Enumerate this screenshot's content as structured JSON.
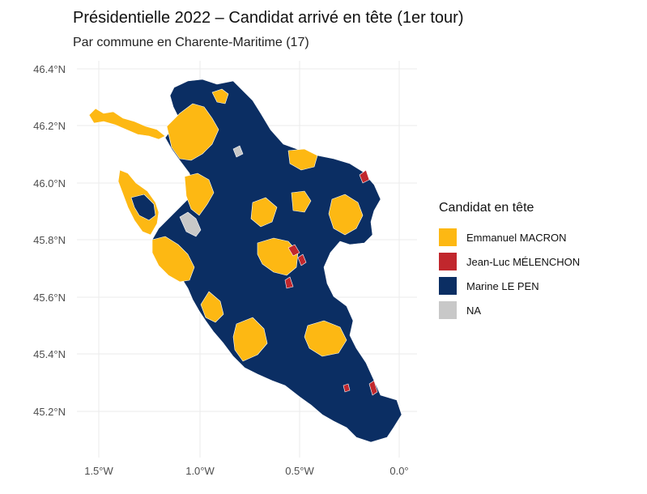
{
  "title": "Présidentielle 2022 – Candidat arrivé en tête (1er tour)",
  "subtitle": "Par commune en Charente-Maritime (17)",
  "legend": {
    "title": "Candidat en tête",
    "items": [
      {
        "label": "Emmanuel MACRON",
        "color": "#FDB813"
      },
      {
        "label": "Jean-Luc MÉLENCHON",
        "color": "#C1272D"
      },
      {
        "label": "Marine LE PEN",
        "color": "#0B2E63"
      },
      {
        "label": "NA",
        "color": "#C8C8C8"
      }
    ]
  },
  "axes": {
    "y_ticks": [
      "46.4°N",
      "46.2°N",
      "46.0°N",
      "45.8°N",
      "45.6°N",
      "45.4°N",
      "45.2°N"
    ],
    "x_ticks": [
      "1.5°W",
      "1.0°W",
      "0.5°W",
      "0.0°"
    ]
  }
}
